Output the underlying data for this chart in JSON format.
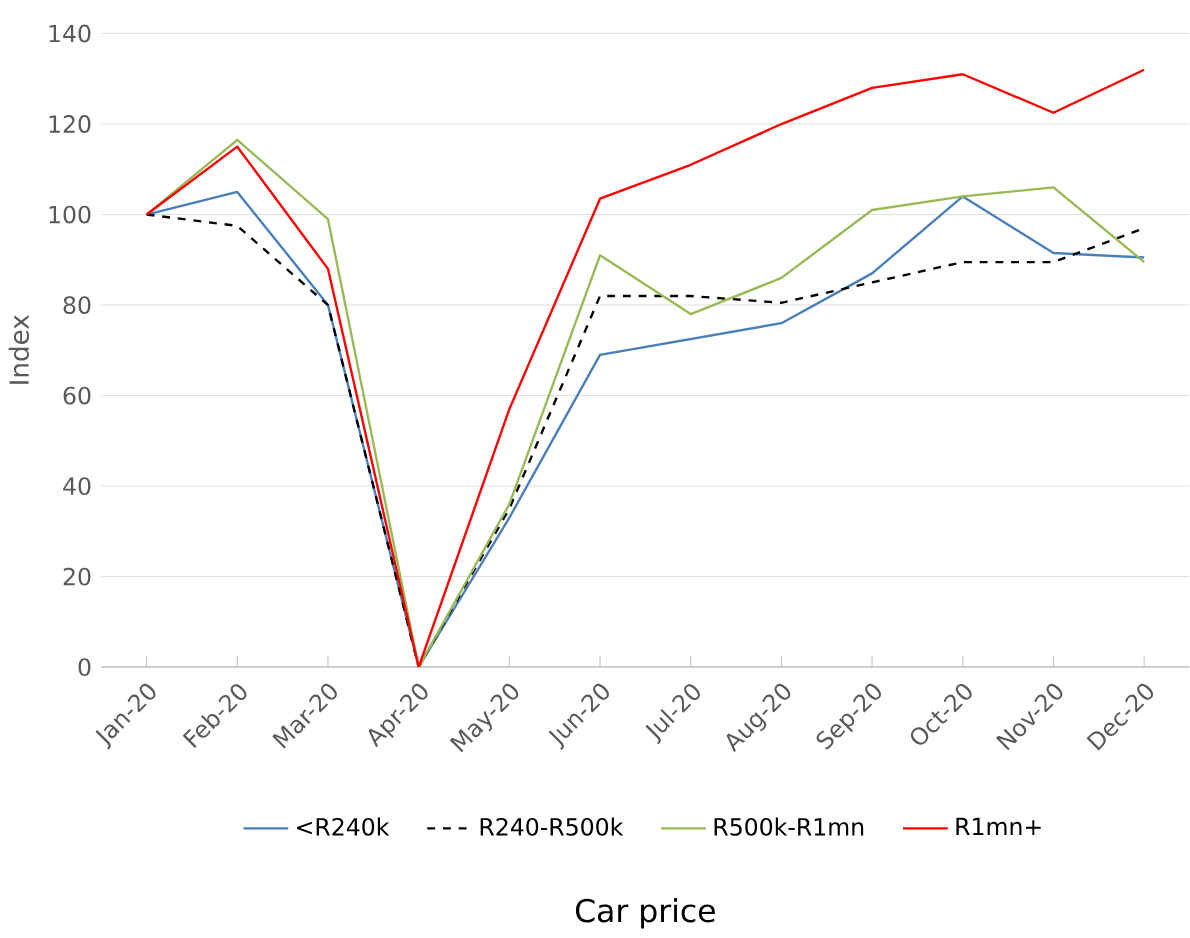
{
  "chart_data": {
    "type": "line",
    "xlabel": "Car price",
    "ylabel": "Index",
    "categories": [
      "Jan-20",
      "Feb-20",
      "Mar-20",
      "Apr-20",
      "May-20",
      "Jun-20",
      "Jul-20",
      "Aug-20",
      "Sep-20",
      "Oct-20",
      "Nov-20",
      "Dec-20"
    ],
    "series": [
      {
        "name": "<R240k",
        "color": "#4a7ebb",
        "values": [
          100,
          105,
          80,
          0,
          33,
          69,
          72.5,
          76,
          87,
          104,
          91.5,
          90.5
        ]
      },
      {
        "name": "R240-R500k",
        "color": "#000000",
        "line_style": "dashed",
        "values": [
          100,
          97.5,
          80,
          0,
          35,
          82,
          82,
          80.5,
          85,
          89.5,
          89.5,
          97
        ]
      },
      {
        "name": "R500k-R1mn",
        "color": "#98b954",
        "values": [
          100,
          116.5,
          99,
          0,
          36,
          91,
          78,
          86,
          101,
          104,
          106,
          89.5
        ]
      },
      {
        "name": "R1mn+",
        "color": "#ff0000",
        "values": [
          100,
          115,
          88,
          0,
          57,
          103.5,
          111,
          120,
          128,
          131,
          122.5,
          132
        ]
      }
    ],
    "ylim": [
      0,
      140
    ],
    "yticks": [
      0,
      20,
      40,
      60,
      80,
      100,
      120,
      140
    ],
    "grid": "y",
    "legend": "bottom",
    "marker": "none"
  }
}
